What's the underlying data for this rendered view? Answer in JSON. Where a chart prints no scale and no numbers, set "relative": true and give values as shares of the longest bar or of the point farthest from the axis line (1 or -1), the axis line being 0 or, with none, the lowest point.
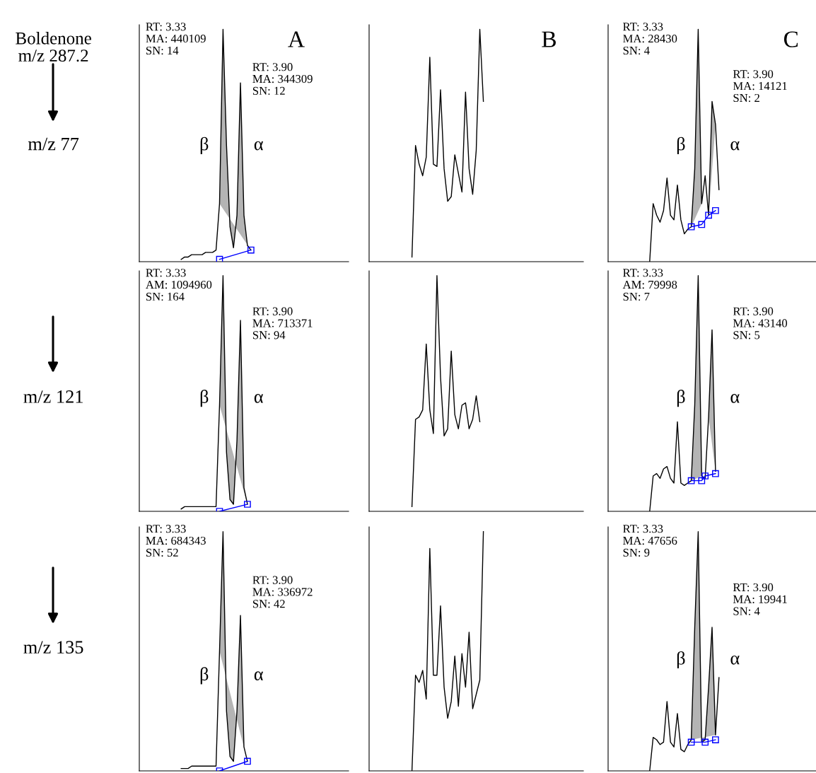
{
  "chart_data": [
    {
      "type": "line",
      "relative": true,
      "title": "A",
      "ylabel": "m/z 77",
      "annotations": [
        "RT: 3.33\nMA: 440109\nSN: 14",
        "RT: 3.90\nMA: 344309\nSN: 12",
        "β",
        "α",
        "Boldenone\nm/z 287.2"
      ],
      "categories": [
        null,
        null,
        null,
        null,
        null,
        null,
        null,
        null,
        null,
        null,
        null,
        null,
        null,
        null,
        null,
        null,
        null,
        null,
        null,
        null,
        null,
        null,
        null,
        null,
        null,
        null,
        null,
        null,
        null,
        null,
        null,
        null,
        null,
        null,
        null,
        null,
        null,
        null,
        null,
        null,
        null,
        null,
        null,
        null,
        null,
        null,
        null,
        null,
        null,
        null,
        null,
        null,
        null,
        null,
        null,
        null,
        null,
        null,
        null,
        null
      ],
      "series": [
        {
          "type": "area",
          "color": "#b4b4b4",
          "values": [
            null,
            null,
            null,
            null,
            null,
            null,
            null,
            null,
            null,
            null,
            null,
            null,
            null,
            null,
            null,
            null,
            null,
            null,
            null,
            null,
            null,
            null,
            null,
            0.25,
            1.0,
            0.5,
            0.15,
            0.06,
            0.2,
            0.77,
            0.2,
            0.07,
            0.05,
            null,
            null,
            null,
            null,
            null,
            null,
            null,
            null,
            null,
            null,
            null,
            null,
            null,
            null,
            null,
            null,
            null,
            null,
            null,
            null,
            null,
            null,
            null,
            null,
            null,
            null,
            null
          ]
        },
        {
          "type": "line",
          "color": "#000000",
          "values": [
            null,
            null,
            null,
            null,
            null,
            null,
            null,
            null,
            null,
            null,
            null,
            null,
            0.01,
            0.02,
            0.02,
            0.03,
            0.03,
            0.03,
            0.03,
            0.04,
            0.04,
            0.04,
            0.05,
            0.25,
            1.0,
            0.5,
            0.15,
            0.06,
            0.2,
            0.77,
            0.2,
            0.07,
            0.05,
            null,
            null,
            null,
            null,
            null,
            null,
            null,
            null,
            null,
            null,
            null,
            null,
            null,
            null,
            null,
            null,
            null,
            null,
            null,
            null,
            null,
            null,
            null,
            null,
            null,
            null,
            null
          ]
        },
        {
          "type": "line",
          "color": "#0000ff",
          "marker": "square",
          "values": [
            null,
            null,
            null,
            null,
            null,
            null,
            null,
            null,
            null,
            null,
            null,
            null,
            null,
            null,
            null,
            null,
            null,
            null,
            null,
            null,
            null,
            null,
            null,
            0.01,
            null,
            null,
            null,
            null,
            null,
            null,
            null,
            null,
            0.05,
            null,
            null,
            null,
            null,
            null,
            null,
            null,
            null,
            null,
            null,
            null,
            null,
            null,
            null,
            null,
            null,
            null,
            null,
            null,
            null,
            null,
            null,
            null,
            null,
            null,
            null,
            null
          ]
        }
      ]
    },
    {
      "type": "line",
      "relative": true,
      "title": "B",
      "categories": [
        null,
        null,
        null,
        null,
        null,
        null,
        null,
        null,
        null,
        null,
        null,
        null,
        null,
        null,
        null,
        null,
        null,
        null,
        null,
        null,
        null,
        null,
        null,
        null,
        null,
        null,
        null,
        null,
        null,
        null,
        null,
        null,
        null,
        null,
        null,
        null,
        null,
        null,
        null,
        null,
        null,
        null,
        null,
        null,
        null,
        null,
        null,
        null,
        null,
        null,
        null,
        null,
        null,
        null,
        null,
        null,
        null,
        null,
        null,
        null
      ],
      "series": [
        {
          "type": "line",
          "color": "#000000",
          "values": [
            null,
            null,
            null,
            null,
            null,
            null,
            null,
            null,
            null,
            null,
            null,
            null,
            0.02,
            0.5,
            0.42,
            0.37,
            0.45,
            0.88,
            0.42,
            0.41,
            0.74,
            0.4,
            0.26,
            0.28,
            0.46,
            0.38,
            0.3,
            0.73,
            0.4,
            0.29,
            0.48,
            1.0,
            0.69,
            null,
            null,
            null,
            null,
            null,
            null,
            null,
            null,
            null,
            null,
            null,
            null,
            null,
            null,
            null,
            null,
            null,
            null,
            null,
            null,
            null,
            null,
            null,
            null,
            null,
            null,
            null
          ]
        }
      ]
    },
    {
      "type": "line",
      "relative": true,
      "title": "C",
      "annotations": [
        "RT: 3.33\nMA: 28430\nSN: 4",
        "RT: 3.90\nMA: 14121\nSN: 2",
        "β",
        "α"
      ],
      "categories": [
        null,
        null,
        null,
        null,
        null,
        null,
        null,
        null,
        null,
        null,
        null,
        null,
        null,
        null,
        null,
        null,
        null,
        null,
        null,
        null,
        null,
        null,
        null,
        null,
        null,
        null,
        null,
        null,
        null,
        null,
        null,
        null,
        null,
        null,
        null,
        null,
        null,
        null,
        null,
        null,
        null,
        null,
        null,
        null,
        null,
        null,
        null,
        null,
        null,
        null,
        null,
        null,
        null,
        null,
        null,
        null,
        null,
        null,
        null,
        null
      ],
      "series": [
        {
          "type": "area",
          "color": "#b4b4b4",
          "values": [
            null,
            null,
            null,
            null,
            null,
            null,
            null,
            null,
            null,
            null,
            null,
            null,
            null,
            null,
            null,
            null,
            null,
            null,
            null,
            null,
            null,
            null,
            null,
            null,
            0.15,
            0.4,
            1.0,
            0.25,
            null,
            0.2,
            0.69,
            0.59,
            null,
            null,
            null,
            null,
            null,
            null,
            null,
            null,
            null,
            null,
            null,
            null,
            null,
            null,
            null,
            null,
            null,
            null,
            null,
            null,
            null,
            null,
            null,
            null,
            null,
            null,
            null,
            null
          ]
        },
        {
          "type": "line",
          "color": "#000000",
          "values": [
            null,
            null,
            null,
            null,
            null,
            null,
            null,
            null,
            null,
            null,
            null,
            null,
            0.0,
            0.25,
            0.2,
            0.17,
            0.22,
            0.36,
            0.2,
            0.18,
            0.33,
            0.18,
            0.12,
            0.14,
            0.15,
            0.4,
            1.0,
            0.25,
            0.37,
            0.2,
            0.69,
            0.59,
            0.31,
            null,
            null,
            null,
            null,
            null,
            null,
            null,
            null,
            null,
            null,
            null,
            null,
            null,
            null,
            null,
            null,
            null,
            null,
            null,
            null,
            null,
            null,
            null,
            null,
            null,
            null,
            null
          ]
        },
        {
          "type": "line",
          "color": "#0000ff",
          "marker": "square",
          "values": [
            null,
            null,
            null,
            null,
            null,
            null,
            null,
            null,
            null,
            null,
            null,
            null,
            null,
            null,
            null,
            null,
            null,
            null,
            null,
            null,
            null,
            null,
            null,
            null,
            0.15,
            null,
            null,
            0.16,
            null,
            0.2,
            null,
            0.22,
            null,
            null,
            null,
            null,
            null,
            null,
            null,
            null,
            null,
            null,
            null,
            null,
            null,
            null,
            null,
            null,
            null,
            null,
            null,
            null,
            null,
            null,
            null,
            null,
            null,
            null,
            null,
            null
          ]
        }
      ]
    },
    {
      "type": "line",
      "relative": true,
      "ylabel": "m/z 121",
      "annotations": [
        "RT: 3.33\nAM: 1094960\nSN: 164",
        "RT: 3.90\nMA: 713371\nSN: 94",
        "β",
        "α"
      ],
      "categories": [
        null,
        null,
        null,
        null,
        null,
        null,
        null,
        null,
        null,
        null,
        null,
        null,
        null,
        null,
        null,
        null,
        null,
        null,
        null,
        null,
        null,
        null,
        null,
        null,
        null,
        null,
        null,
        null,
        null,
        null,
        null,
        null,
        null,
        null,
        null,
        null,
        null,
        null,
        null,
        null,
        null,
        null,
        null,
        null,
        null,
        null,
        null,
        null,
        null,
        null,
        null,
        null,
        null,
        null,
        null,
        null,
        null,
        null,
        null,
        null
      ],
      "series": [
        {
          "type": "area",
          "color": "#b4b4b4",
          "values": [
            null,
            null,
            null,
            null,
            null,
            null,
            null,
            null,
            null,
            null,
            null,
            null,
            null,
            null,
            null,
            null,
            null,
            null,
            null,
            null,
            null,
            null,
            null,
            0.45,
            1.0,
            0.25,
            0.05,
            0.03,
            0.3,
            0.81,
            0.1,
            0.03,
            null,
            null,
            null,
            null,
            null,
            null,
            null,
            null,
            null,
            null,
            null,
            null,
            null,
            null,
            null,
            null,
            null,
            null,
            null,
            null,
            null,
            null,
            null,
            null,
            null,
            null,
            null,
            null
          ]
        },
        {
          "type": "line",
          "color": "#000000",
          "values": [
            null,
            null,
            null,
            null,
            null,
            null,
            null,
            null,
            null,
            null,
            null,
            null,
            0.01,
            0.02,
            0.02,
            0.02,
            0.02,
            0.02,
            0.02,
            0.02,
            0.02,
            0.02,
            0.02,
            0.45,
            1.0,
            0.25,
            0.05,
            0.03,
            0.3,
            0.81,
            0.1,
            0.03,
            null,
            null,
            null,
            null,
            null,
            null,
            null,
            null,
            null,
            null,
            null,
            null,
            null,
            null,
            null,
            null,
            null,
            null,
            null,
            null,
            null,
            null,
            null,
            null,
            null,
            null,
            null,
            null
          ]
        },
        {
          "type": "line",
          "color": "#0000ff",
          "marker": "square",
          "values": [
            null,
            null,
            null,
            null,
            null,
            null,
            null,
            null,
            null,
            null,
            null,
            null,
            null,
            null,
            null,
            null,
            null,
            null,
            null,
            null,
            null,
            null,
            null,
            0.0,
            null,
            null,
            null,
            null,
            null,
            null,
            null,
            0.03,
            null,
            null,
            null,
            null,
            null,
            null,
            null,
            null,
            null,
            null,
            null,
            null,
            null,
            null,
            null,
            null,
            null,
            null,
            null,
            null,
            null,
            null,
            null,
            null,
            null,
            null,
            null,
            null
          ]
        }
      ]
    },
    {
      "type": "line",
      "relative": true,
      "categories": [
        null,
        null,
        null,
        null,
        null,
        null,
        null,
        null,
        null,
        null,
        null,
        null,
        null,
        null,
        null,
        null,
        null,
        null,
        null,
        null,
        null,
        null,
        null,
        null,
        null,
        null,
        null,
        null,
        null,
        null,
        null,
        null,
        null,
        null,
        null,
        null,
        null,
        null,
        null,
        null,
        null,
        null,
        null,
        null,
        null,
        null,
        null,
        null,
        null,
        null,
        null,
        null,
        null,
        null,
        null,
        null,
        null,
        null,
        null,
        null
      ],
      "series": [
        {
          "type": "line",
          "color": "#000000",
          "values": [
            null,
            null,
            null,
            null,
            null,
            null,
            null,
            null,
            null,
            null,
            null,
            null,
            0.02,
            0.39,
            0.4,
            0.43,
            0.71,
            0.43,
            0.33,
            1.0,
            0.57,
            0.32,
            0.35,
            0.68,
            0.41,
            0.35,
            0.45,
            0.46,
            0.35,
            0.39,
            0.49,
            0.38,
            null,
            null,
            null,
            null,
            null,
            null,
            null,
            null,
            null,
            null,
            null,
            null,
            null,
            null,
            null,
            null,
            null,
            null,
            null,
            null,
            null,
            null,
            null,
            null,
            null,
            null,
            null,
            null
          ]
        }
      ]
    },
    {
      "type": "line",
      "relative": true,
      "annotations": [
        "RT: 3.33\nAM: 79998\nSN: 7",
        "RT: 3.90\nMA: 43140\nSN: 5",
        "β",
        "α"
      ],
      "categories": [
        null,
        null,
        null,
        null,
        null,
        null,
        null,
        null,
        null,
        null,
        null,
        null,
        null,
        null,
        null,
        null,
        null,
        null,
        null,
        null,
        null,
        null,
        null,
        null,
        null,
        null,
        null,
        null,
        null,
        null,
        null,
        null,
        null,
        null,
        null,
        null,
        null,
        null,
        null,
        null,
        null,
        null,
        null,
        null,
        null,
        null,
        null,
        null,
        null,
        null,
        null,
        null,
        null,
        null,
        null,
        null,
        null,
        null,
        null,
        null
      ],
      "series": [
        {
          "type": "area",
          "color": "#b4b4b4",
          "values": [
            null,
            null,
            null,
            null,
            null,
            null,
            null,
            null,
            null,
            null,
            null,
            null,
            null,
            null,
            null,
            null,
            null,
            null,
            null,
            null,
            null,
            null,
            null,
            null,
            0.13,
            0.45,
            1.0,
            0.15,
            null,
            0.4,
            0.77,
            0.17,
            null,
            null,
            null,
            null,
            null,
            null,
            null,
            null,
            null,
            null,
            null,
            null,
            null,
            null,
            null,
            null,
            null,
            null,
            null,
            null,
            null,
            null,
            null,
            null,
            null,
            null,
            null,
            null
          ]
        },
        {
          "type": "line",
          "color": "#000000",
          "values": [
            null,
            null,
            null,
            null,
            null,
            null,
            null,
            null,
            null,
            null,
            null,
            null,
            0.0,
            0.15,
            0.16,
            0.14,
            0.18,
            0.19,
            0.14,
            0.12,
            0.38,
            0.12,
            0.11,
            0.12,
            0.13,
            0.45,
            1.0,
            0.15,
            0.14,
            0.4,
            0.77,
            0.17,
            null,
            null,
            null,
            null,
            null,
            null,
            null,
            null,
            null,
            null,
            null,
            null,
            null,
            null,
            null,
            null,
            null,
            null,
            null,
            null,
            null,
            null,
            null,
            null,
            null,
            null,
            null,
            null
          ]
        },
        {
          "type": "line",
          "color": "#0000ff",
          "marker": "square",
          "values": [
            null,
            null,
            null,
            null,
            null,
            null,
            null,
            null,
            null,
            null,
            null,
            null,
            null,
            null,
            null,
            null,
            null,
            null,
            null,
            null,
            null,
            null,
            null,
            null,
            0.13,
            null,
            null,
            0.13,
            0.15,
            null,
            null,
            0.16,
            null,
            null,
            null,
            null,
            null,
            null,
            null,
            null,
            null,
            null,
            null,
            null,
            null,
            null,
            null,
            null,
            null,
            null,
            null,
            null,
            null,
            null,
            null,
            null,
            null,
            null,
            null,
            null
          ]
        }
      ]
    },
    {
      "type": "line",
      "relative": true,
      "ylabel": "m/z 135",
      "annotations": [
        "RT: 3.33\nMA: 684343\nSN: 52",
        "RT: 3.90\nMA: 336972\nSN: 42",
        "β",
        "α"
      ],
      "categories": [
        null,
        null,
        null,
        null,
        null,
        null,
        null,
        null,
        null,
        null,
        null,
        null,
        null,
        null,
        null,
        null,
        null,
        null,
        null,
        null,
        null,
        null,
        null,
        null,
        null,
        null,
        null,
        null,
        null,
        null,
        null,
        null,
        null,
        null,
        null,
        null,
        null,
        null,
        null,
        null,
        null,
        null,
        null,
        null,
        null,
        null,
        null,
        null,
        null,
        null,
        null,
        null,
        null,
        null,
        null,
        null,
        null,
        null,
        null,
        null
      ],
      "series": [
        {
          "type": "area",
          "color": "#b4b4b4",
          "values": [
            null,
            null,
            null,
            null,
            null,
            null,
            null,
            null,
            null,
            null,
            null,
            null,
            null,
            null,
            null,
            null,
            null,
            null,
            null,
            null,
            null,
            null,
            null,
            0.5,
            1.0,
            0.25,
            0.06,
            0.04,
            0.25,
            0.65,
            0.1,
            0.04,
            null,
            null,
            null,
            null,
            null,
            null,
            null,
            null,
            null,
            null,
            null,
            null,
            null,
            null,
            null,
            null,
            null,
            null,
            null,
            null,
            null,
            null,
            null,
            null,
            null,
            null,
            null,
            null
          ]
        },
        {
          "type": "line",
          "color": "#000000",
          "values": [
            null,
            null,
            null,
            null,
            null,
            null,
            null,
            null,
            null,
            null,
            null,
            null,
            0.01,
            0.01,
            0.01,
            0.02,
            0.02,
            0.02,
            0.02,
            0.02,
            0.02,
            0.02,
            0.02,
            0.5,
            1.0,
            0.25,
            0.06,
            0.04,
            0.25,
            0.65,
            0.1,
            0.04,
            null,
            null,
            null,
            null,
            null,
            null,
            null,
            null,
            null,
            null,
            null,
            null,
            null,
            null,
            null,
            null,
            null,
            null,
            null,
            null,
            null,
            null,
            null,
            null,
            null,
            null,
            null,
            null
          ]
        },
        {
          "type": "line",
          "color": "#0000ff",
          "marker": "square",
          "values": [
            null,
            null,
            null,
            null,
            null,
            null,
            null,
            null,
            null,
            null,
            null,
            null,
            null,
            null,
            null,
            null,
            null,
            null,
            null,
            null,
            null,
            null,
            null,
            0.0,
            null,
            null,
            null,
            null,
            null,
            null,
            null,
            0.04,
            null,
            null,
            null,
            null,
            null,
            null,
            null,
            null,
            null,
            null,
            null,
            null,
            null,
            null,
            null,
            null,
            null,
            null,
            null,
            null,
            null,
            null,
            null,
            null,
            null,
            null,
            null,
            null
          ]
        }
      ]
    },
    {
      "type": "line",
      "relative": true,
      "categories": [
        null,
        null,
        null,
        null,
        null,
        null,
        null,
        null,
        null,
        null,
        null,
        null,
        null,
        null,
        null,
        null,
        null,
        null,
        null,
        null,
        null,
        null,
        null,
        null,
        null,
        null,
        null,
        null,
        null,
        null,
        null,
        null,
        null,
        null,
        null,
        null,
        null,
        null,
        null,
        null,
        null,
        null,
        null,
        null,
        null,
        null,
        null,
        null,
        null,
        null,
        null,
        null,
        null,
        null,
        null,
        null,
        null,
        null,
        null,
        null
      ],
      "series": [
        {
          "type": "line",
          "color": "#000000",
          "values": [
            null,
            null,
            null,
            null,
            null,
            null,
            null,
            null,
            null,
            null,
            null,
            null,
            0.0,
            0.4,
            0.37,
            0.42,
            0.3,
            0.93,
            0.4,
            0.4,
            0.69,
            0.35,
            0.22,
            0.29,
            0.48,
            0.27,
            0.49,
            0.35,
            0.58,
            0.26,
            0.32,
            0.38,
            1.0,
            null,
            null,
            null,
            null,
            null,
            null,
            null,
            null,
            null,
            null,
            null,
            null,
            null,
            null,
            null,
            null,
            null,
            null,
            null,
            null,
            null,
            null,
            null,
            null,
            null,
            null,
            null
          ]
        }
      ]
    },
    {
      "type": "line",
      "relative": true,
      "annotations": [
        "RT: 3.33\nMA: 47656\nSN: 9",
        "RT: 3.90\nMA: 19941\nSN: 4",
        "β",
        "α"
      ],
      "categories": [
        null,
        null,
        null,
        null,
        null,
        null,
        null,
        null,
        null,
        null,
        null,
        null,
        null,
        null,
        null,
        null,
        null,
        null,
        null,
        null,
        null,
        null,
        null,
        null,
        null,
        null,
        null,
        null,
        null,
        null,
        null,
        null,
        null,
        null,
        null,
        null,
        null,
        null,
        null,
        null,
        null,
        null,
        null,
        null,
        null,
        null,
        null,
        null,
        null,
        null,
        null,
        null,
        null,
        null,
        null,
        null,
        null,
        null,
        null,
        null
      ],
      "series": [
        {
          "type": "area",
          "color": "#b4b4b4",
          "values": [
            null,
            null,
            null,
            null,
            null,
            null,
            null,
            null,
            null,
            null,
            null,
            null,
            null,
            null,
            null,
            null,
            null,
            null,
            null,
            null,
            null,
            null,
            null,
            null,
            0.13,
            0.6,
            1.0,
            0.12,
            0.13,
            0.35,
            0.6,
            0.15,
            null,
            null,
            null,
            null,
            null,
            null,
            null,
            null,
            null,
            null,
            null,
            null,
            null,
            null,
            null,
            null,
            null,
            null,
            null,
            null,
            null,
            null,
            null,
            null,
            null,
            null,
            null,
            null
          ]
        },
        {
          "type": "line",
          "color": "#000000",
          "values": [
            null,
            null,
            null,
            null,
            null,
            null,
            null,
            null,
            null,
            null,
            null,
            null,
            0.0,
            0.14,
            0.13,
            0.11,
            0.12,
            0.29,
            0.12,
            0.1,
            0.24,
            0.09,
            0.08,
            0.11,
            0.13,
            0.6,
            1.0,
            0.12,
            0.13,
            0.35,
            0.6,
            0.15,
            0.39,
            null,
            null,
            null,
            null,
            null,
            null,
            null,
            null,
            null,
            null,
            null,
            null,
            null,
            null,
            null,
            null,
            null,
            null,
            null,
            null,
            null,
            null,
            null,
            null,
            null,
            null,
            null
          ]
        },
        {
          "type": "line",
          "color": "#0000ff",
          "marker": "square",
          "values": [
            null,
            null,
            null,
            null,
            null,
            null,
            null,
            null,
            null,
            null,
            null,
            null,
            null,
            null,
            null,
            null,
            null,
            null,
            null,
            null,
            null,
            null,
            null,
            null,
            0.12,
            null,
            null,
            null,
            0.12,
            null,
            null,
            0.13,
            null,
            null,
            null,
            null,
            null,
            null,
            null,
            null,
            null,
            null,
            null,
            null,
            null,
            null,
            null,
            null,
            null,
            null,
            null,
            null,
            null,
            null,
            null,
            null,
            null,
            null,
            null,
            null
          ]
        }
      ]
    }
  ]
}
